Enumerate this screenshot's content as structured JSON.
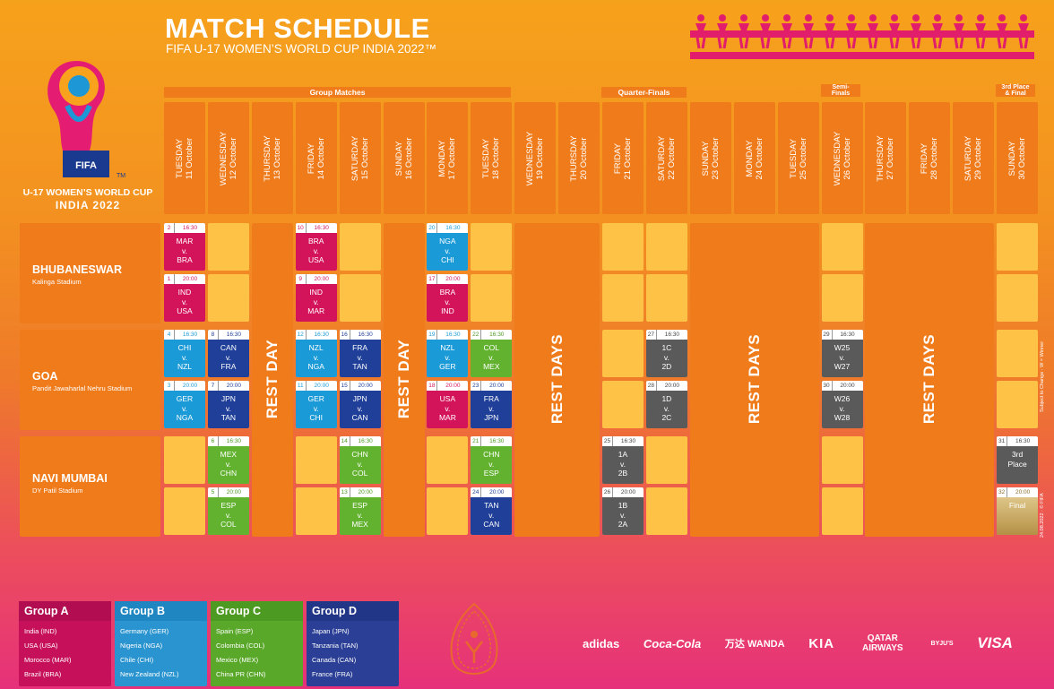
{
  "header": {
    "title": "MATCH SCHEDULE",
    "subtitle": "FIFA U-17 WOMEN’S WORLD CUP INDIA 2022™"
  },
  "logo": {
    "line1": "U-17 WOMEN’S WORLD CUP",
    "line2": "INDIA 2022",
    "fifa": "FIFA",
    "tm": "TM"
  },
  "stages": {
    "group": "Group Matches",
    "qf": "Quarter-Finals",
    "sf1": "Semi-",
    "sf2": "Finals",
    "final1": "3rd Place",
    "final2": "& Final"
  },
  "days": [
    {
      "d": "TUESDAY",
      "dt": "11 October"
    },
    {
      "d": "WEDNESDAY",
      "dt": "12 October"
    },
    {
      "d": "THURSDAY",
      "dt": "13 October"
    },
    {
      "d": "FRIDAY",
      "dt": "14 October"
    },
    {
      "d": "SATURDAY",
      "dt": "15 October"
    },
    {
      "d": "SUNDAY",
      "dt": "16 October"
    },
    {
      "d": "MONDAY",
      "dt": "17 October"
    },
    {
      "d": "TUESDAY",
      "dt": "18 October"
    },
    {
      "d": "WEDNESDAY",
      "dt": "19 October"
    },
    {
      "d": "THURSDAY",
      "dt": "20 October"
    },
    {
      "d": "FRIDAY",
      "dt": "21 October"
    },
    {
      "d": "SATURDAY",
      "dt": "22 October"
    },
    {
      "d": "SUNDAY",
      "dt": "23 October"
    },
    {
      "d": "MONDAY",
      "dt": "24 October"
    },
    {
      "d": "TUESDAY",
      "dt": "25 October"
    },
    {
      "d": "WEDNESDAY",
      "dt": "26 October"
    },
    {
      "d": "THURSDAY",
      "dt": "27 October"
    },
    {
      "d": "FRIDAY",
      "dt": "28 October"
    },
    {
      "d": "SATURDAY",
      "dt": "29 October"
    },
    {
      "d": "SUNDAY",
      "dt": "30 October"
    }
  ],
  "venues": [
    {
      "name": "BHUBANESWAR",
      "stadium": "Kalinga Stadium"
    },
    {
      "name": "GOA",
      "stadium": "Pandit Jawaharlal Nehru Stadium"
    },
    {
      "name": "NAVI MUMBAI",
      "stadium": "DY Patil Stadium"
    }
  ],
  "rest": {
    "day": "REST DAY",
    "days": "REST DAYS"
  },
  "matches": [
    {
      "no": "2",
      "time": "16:30",
      "t1": "MAR",
      "v": "v.",
      "t2": "BRA",
      "g": "A",
      "col": 0,
      "row": 0
    },
    {
      "no": "1",
      "time": "20:00",
      "t1": "IND",
      "v": "v.",
      "t2": "USA",
      "g": "A",
      "col": 0,
      "row": 1
    },
    {
      "no": "10",
      "time": "16:30",
      "t1": "BRA",
      "v": "v.",
      "t2": "USA",
      "g": "A",
      "col": 3,
      "row": 0
    },
    {
      "no": "9",
      "time": "20:00",
      "t1": "IND",
      "v": "v.",
      "t2": "MAR",
      "g": "A",
      "col": 3,
      "row": 1
    },
    {
      "no": "20",
      "time": "16:30",
      "t1": "NGA",
      "v": "v.",
      "t2": "CHI",
      "g": "B",
      "col": 6,
      "row": 0
    },
    {
      "no": "17",
      "time": "20:00",
      "t1": "BRA",
      "v": "v.",
      "t2": "IND",
      "g": "A",
      "col": 6,
      "row": 1
    },
    {
      "no": "4",
      "time": "16:30",
      "t1": "CHI",
      "v": "v.",
      "t2": "NZL",
      "g": "B",
      "col": 0,
      "row": 2
    },
    {
      "no": "3",
      "time": "20:00",
      "t1": "GER",
      "v": "v.",
      "t2": "NGA",
      "g": "B",
      "col": 0,
      "row": 3
    },
    {
      "no": "8",
      "time": "16:30",
      "t1": "CAN",
      "v": "v.",
      "t2": "FRA",
      "g": "D",
      "col": 1,
      "row": 2
    },
    {
      "no": "7",
      "time": "20:00",
      "t1": "JPN",
      "v": "v.",
      "t2": "TAN",
      "g": "D",
      "col": 1,
      "row": 3
    },
    {
      "no": "12",
      "time": "16:30",
      "t1": "NZL",
      "v": "v.",
      "t2": "NGA",
      "g": "B",
      "col": 3,
      "row": 2
    },
    {
      "no": "11",
      "time": "20:00",
      "t1": "GER",
      "v": "v.",
      "t2": "CHI",
      "g": "B",
      "col": 3,
      "row": 3
    },
    {
      "no": "16",
      "time": "16:30",
      "t1": "FRA",
      "v": "v.",
      "t2": "TAN",
      "g": "D",
      "col": 4,
      "row": 2
    },
    {
      "no": "15",
      "time": "20:00",
      "t1": "JPN",
      "v": "v.",
      "t2": "CAN",
      "g": "D",
      "col": 4,
      "row": 3
    },
    {
      "no": "19",
      "time": "16:30",
      "t1": "NZL",
      "v": "v.",
      "t2": "GER",
      "g": "B",
      "col": 6,
      "row": 2
    },
    {
      "no": "18",
      "time": "20:00",
      "t1": "USA",
      "v": "v.",
      "t2": "MAR",
      "g": "A",
      "col": 6,
      "row": 3
    },
    {
      "no": "22",
      "time": "16:30",
      "t1": "COL",
      "v": "v.",
      "t2": "MEX",
      "g": "C",
      "col": 7,
      "row": 2
    },
    {
      "no": "23",
      "time": "20:00",
      "t1": "FRA",
      "v": "v.",
      "t2": "JPN",
      "g": "D",
      "col": 7,
      "row": 3
    },
    {
      "no": "27",
      "time": "16:30",
      "t1": "1C",
      "v": "v.",
      "t2": "2D",
      "g": "K",
      "col": 11,
      "row": 2
    },
    {
      "no": "28",
      "time": "20:00",
      "t1": "1D",
      "v": "v.",
      "t2": "2C",
      "g": "K",
      "col": 11,
      "row": 3
    },
    {
      "no": "29",
      "time": "16:30",
      "t1": "W25",
      "v": "v.",
      "t2": "W27",
      "g": "K",
      "col": 15,
      "row": 2
    },
    {
      "no": "30",
      "time": "20:00",
      "t1": "W26",
      "v": "v.",
      "t2": "W28",
      "g": "K",
      "col": 15,
      "row": 3
    },
    {
      "no": "6",
      "time": "16:30",
      "t1": "MEX",
      "v": "v.",
      "t2": "CHN",
      "g": "C",
      "col": 1,
      "row": 4
    },
    {
      "no": "5",
      "time": "20:00",
      "t1": "ESP",
      "v": "v.",
      "t2": "COL",
      "g": "C",
      "col": 1,
      "row": 5
    },
    {
      "no": "14",
      "time": "16:30",
      "t1": "CHN",
      "v": "v.",
      "t2": "COL",
      "g": "C",
      "col": 4,
      "row": 4
    },
    {
      "no": "13",
      "time": "20:00",
      "t1": "ESP",
      "v": "v.",
      "t2": "MEX",
      "g": "C",
      "col": 4,
      "row": 5
    },
    {
      "no": "21",
      "time": "16:30",
      "t1": "CHN",
      "v": "v.",
      "t2": "ESP",
      "g": "C",
      "col": 7,
      "row": 4
    },
    {
      "no": "24",
      "time": "20:00",
      "t1": "TAN",
      "v": "v.",
      "t2": "CAN",
      "g": "D",
      "col": 7,
      "row": 5
    },
    {
      "no": "25",
      "time": "16:30",
      "t1": "1A",
      "v": "v.",
      "t2": "2B",
      "g": "K",
      "col": 10,
      "row": 4
    },
    {
      "no": "26",
      "time": "20:00",
      "t1": "1B",
      "v": "v.",
      "t2": "2A",
      "g": "K",
      "col": 10,
      "row": 5
    },
    {
      "no": "31",
      "time": "16:30",
      "t1": "3rd",
      "v": "Place",
      "t2": "",
      "g": "K",
      "col": 19,
      "row": 4
    },
    {
      "no": "32",
      "time": "20:00",
      "t1": "",
      "v": "Final",
      "t2": "",
      "g": "F",
      "col": 19,
      "row": 5
    }
  ],
  "groups": [
    {
      "name": "Group A",
      "teams": [
        "India (IND)",
        "USA (USA)",
        "Morocco (MAR)",
        "Brazil (BRA)"
      ]
    },
    {
      "name": "Group B",
      "teams": [
        "Germany (GER)",
        "Nigeria (NGA)",
        "Chile (CHI)",
        "New Zealand (NZL)"
      ]
    },
    {
      "name": "Group C",
      "teams": [
        "Spain (ESP)",
        "Colombia (COL)",
        "Mexico (MEX)",
        "China PR (CHN)"
      ]
    },
    {
      "name": "Group D",
      "teams": [
        "Japan (JPN)",
        "Tanzania (TAN)",
        "Canada (CAN)",
        "France (FRA)"
      ]
    }
  ],
  "sponsors": [
    "adidas",
    "Coca-Cola",
    "万达 WANDA",
    "KIA",
    "QATAR AIRWAYS",
    "BYJU'S",
    "VISA"
  ],
  "side_note": "Subject to Change · W = Winner",
  "side_note2": "24.08.2022 · © FIFA",
  "colors": {
    "groupA": "#d4145a",
    "groupB": "#1a9ad7",
    "groupC": "#62b22f",
    "groupD": "#1f3f99",
    "knockout": "#5a5a5a"
  }
}
